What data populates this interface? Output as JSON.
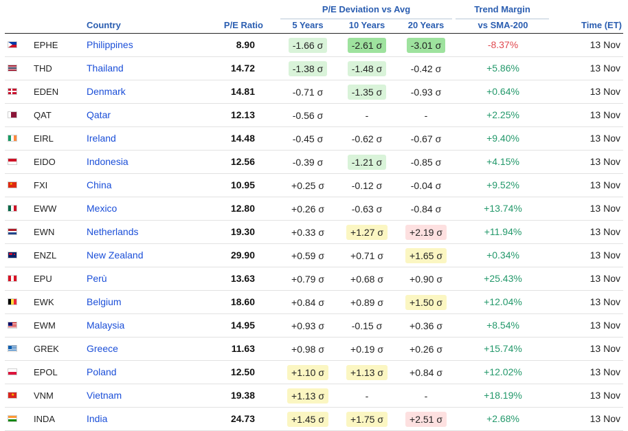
{
  "header": {
    "group_deviation": "P/E Deviation vs Avg",
    "group_trend": "Trend Margin",
    "col_country": "Country",
    "col_pe": "P/E Ratio",
    "col_5y": "5 Years",
    "col_10y": "10 Years",
    "col_20y": "20 Years",
    "col_sma": "vs SMA-200",
    "col_time": "Time (ET)"
  },
  "rows": [
    {
      "flag": "PH",
      "ticker": "EPHE",
      "country": "Philippines",
      "pe": "8.90",
      "d5": "-1.66 σ",
      "d10": "-2.61 σ",
      "d20": "-3.01 σ",
      "tm": "-8.37%",
      "time": "13 Nov"
    },
    {
      "flag": "TH",
      "ticker": "THD",
      "country": "Thailand",
      "pe": "14.72",
      "d5": "-1.38 σ",
      "d10": "-1.48 σ",
      "d20": "-0.42 σ",
      "tm": "+5.86%",
      "time": "13 Nov"
    },
    {
      "flag": "DK",
      "ticker": "EDEN",
      "country": "Denmark",
      "pe": "14.81",
      "d5": "-0.71 σ",
      "d10": "-1.35 σ",
      "d20": "-0.93 σ",
      "tm": "+0.64%",
      "time": "13 Nov"
    },
    {
      "flag": "QA",
      "ticker": "QAT",
      "country": "Qatar",
      "pe": "12.13",
      "d5": "-0.56 σ",
      "d10": "-",
      "d20": "-",
      "tm": "+2.25%",
      "time": "13 Nov"
    },
    {
      "flag": "IE",
      "ticker": "EIRL",
      "country": "Ireland",
      "pe": "14.48",
      "d5": "-0.45 σ",
      "d10": "-0.62 σ",
      "d20": "-0.67 σ",
      "tm": "+9.40%",
      "time": "13 Nov"
    },
    {
      "flag": "ID",
      "ticker": "EIDO",
      "country": "Indonesia",
      "pe": "12.56",
      "d5": "-0.39 σ",
      "d10": "-1.21 σ",
      "d20": "-0.85 σ",
      "tm": "+4.15%",
      "time": "13 Nov"
    },
    {
      "flag": "CN",
      "ticker": "FXI",
      "country": "China",
      "pe": "10.95",
      "d5": "+0.25 σ",
      "d10": "-0.12 σ",
      "d20": "-0.04 σ",
      "tm": "+9.52%",
      "time": "13 Nov"
    },
    {
      "flag": "MX",
      "ticker": "EWW",
      "country": "Mexico",
      "pe": "12.80",
      "d5": "+0.26 σ",
      "d10": "-0.63 σ",
      "d20": "-0.84 σ",
      "tm": "+13.74%",
      "time": "13 Nov"
    },
    {
      "flag": "NL",
      "ticker": "EWN",
      "country": "Netherlands",
      "pe": "19.30",
      "d5": "+0.33 σ",
      "d10": "+1.27 σ",
      "d20": "+2.19 σ",
      "tm": "+11.94%",
      "time": "13 Nov"
    },
    {
      "flag": "NZ",
      "ticker": "ENZL",
      "country": "New Zealand",
      "pe": "29.90",
      "d5": "+0.59 σ",
      "d10": "+0.71 σ",
      "d20": "+1.65 σ",
      "tm": "+0.34%",
      "time": "13 Nov"
    },
    {
      "flag": "PE",
      "ticker": "EPU",
      "country": "Perù",
      "pe": "13.63",
      "d5": "+0.79 σ",
      "d10": "+0.68 σ",
      "d20": "+0.90 σ",
      "tm": "+25.43%",
      "time": "13 Nov"
    },
    {
      "flag": "BE",
      "ticker": "EWK",
      "country": "Belgium",
      "pe": "18.60",
      "d5": "+0.84 σ",
      "d10": "+0.89 σ",
      "d20": "+1.50 σ",
      "tm": "+12.04%",
      "time": "13 Nov"
    },
    {
      "flag": "MY",
      "ticker": "EWM",
      "country": "Malaysia",
      "pe": "14.95",
      "d5": "+0.93 σ",
      "d10": "-0.15 σ",
      "d20": "+0.36 σ",
      "tm": "+8.54%",
      "time": "13 Nov"
    },
    {
      "flag": "GR",
      "ticker": "GREK",
      "country": "Greece",
      "pe": "11.63",
      "d5": "+0.98 σ",
      "d10": "+0.19 σ",
      "d20": "+0.26 σ",
      "tm": "+15.74%",
      "time": "13 Nov"
    },
    {
      "flag": "PL",
      "ticker": "EPOL",
      "country": "Poland",
      "pe": "12.50",
      "d5": "+1.10 σ",
      "d10": "+1.13 σ",
      "d20": "+0.84 σ",
      "tm": "+12.02%",
      "time": "13 Nov"
    },
    {
      "flag": "VN",
      "ticker": "VNM",
      "country": "Vietnam",
      "pe": "19.38",
      "d5": "+1.13 σ",
      "d10": "-",
      "d20": "-",
      "tm": "+18.19%",
      "time": "13 Nov"
    },
    {
      "flag": "IN",
      "ticker": "INDA",
      "country": "India",
      "pe": "24.73",
      "d5": "+1.45 σ",
      "d10": "+1.75 σ",
      "d20": "+2.51 σ",
      "tm": "+2.68%",
      "time": "13 Nov"
    }
  ],
  "highlights": {
    "0": {
      "d5": "bg-green",
      "d10": "bg-green-dark",
      "d20": "bg-green-dark"
    },
    "1": {
      "d5": "bg-green",
      "d10": "bg-green"
    },
    "2": {
      "d10": "bg-green"
    },
    "5": {
      "d10": "bg-green"
    },
    "8": {
      "d10": "bg-yellow",
      "d20": "bg-red"
    },
    "9": {
      "d20": "bg-yellow"
    },
    "11": {
      "d20": "bg-yellow"
    },
    "14": {
      "d5": "bg-yellow",
      "d10": "bg-yellow"
    },
    "15": {
      "d5": "bg-yellow"
    },
    "16": {
      "d5": "bg-yellow",
      "d10": "bg-yellow",
      "d20": "bg-red"
    }
  },
  "selected_text": "3.01 σ",
  "colors": {
    "header_blue": "#2a5db0",
    "link_blue": "#1a4ed8",
    "positive_green": "#22986a",
    "negative_red": "#e0484f",
    "cell_green": "#d9f3d9",
    "cell_green_dark": "#9ee29e",
    "cell_yellow": "#fbf6c2",
    "cell_red": "#fde0e0"
  }
}
